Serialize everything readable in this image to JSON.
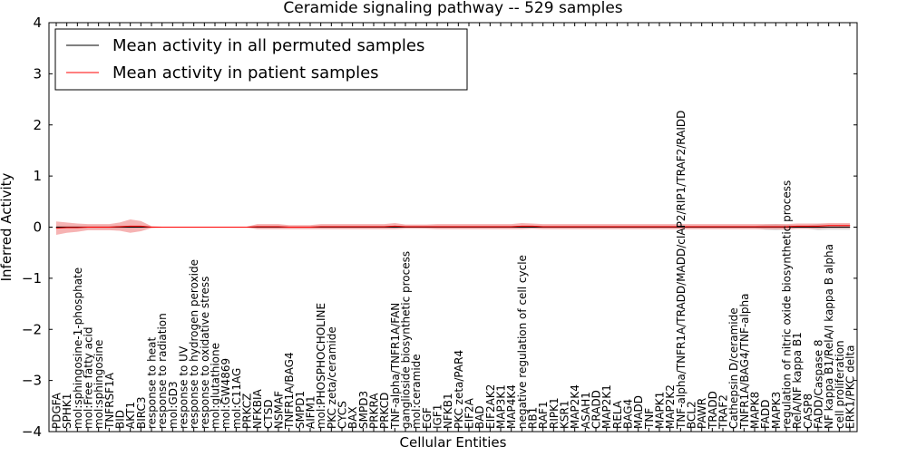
{
  "chart_data": {
    "type": "line",
    "title": "Ceramide signaling pathway -- 529 samples",
    "xlabel": "Cellular Entities",
    "ylabel": "Inferred Activity",
    "ylim": [
      -4,
      4
    ],
    "yticks": [
      -4,
      -3,
      -2,
      -1,
      0,
      1,
      2,
      3,
      4
    ],
    "ytick_labels": [
      "−4",
      "−3",
      "−2",
      "−1",
      "0",
      "1",
      "2",
      "3",
      "4"
    ],
    "grid": false,
    "legend_position": "top-left",
    "categories": [
      "PDGFA",
      "SPHK1",
      "mol:sphingosine-1-phosphate",
      "mol:Free fatty acid",
      "mol:sphingosine",
      "TNFRSF1A",
      "BID",
      "AKT1",
      "BIRC3",
      "response to heat",
      "response to radiation",
      "mol:GD3",
      "response to UV",
      "response to hydrogen peroxide",
      "response to oxidative stress",
      "mol:glutathione",
      "mol:GW4869",
      "mol:C11AG",
      "PRKCZ",
      "NFKBIA",
      "CTSD",
      "NSMAF",
      "TNFR1A/BAG4",
      "SMPD1",
      "AIFM1",
      "mol:PHOSPHOCHOLINE",
      "PKC zeta/ceramide",
      "CYCS",
      "BAX",
      "SMPD3",
      "PRKRA",
      "PRKCD",
      "TNF-alpha/TNFR1A/FAN",
      "ganglioside biosynthetic process",
      "mol:ceramide",
      "EGF",
      "IGF1",
      "NFKB1",
      "PKC zeta/PAR4",
      "EIF2A",
      "BAD",
      "EIF2AK2",
      "MAP3K1",
      "MAP4K4",
      "negative regulation of cell cycle",
      "RB1",
      "RAF1",
      "RIPK1",
      "KSR1",
      "MAP2K4",
      "ASAH1",
      "CRADD",
      "MAP2K1",
      "RELA",
      "BAG4",
      "MADD",
      "TNF",
      "MAPK1",
      "MAP2K2",
      "TNF-alpha/TNFR1A/TRADD/MADD/cIAP2/RIP1/TRAF2/RAIDD",
      "BCL2",
      "PAWR",
      "TRADD",
      "TRAF2",
      "Cathepsin D/ceramide",
      "TNFR1A/BAG4/TNF-alpha",
      "MAPK8",
      "FADD",
      "MAPK3",
      "regulation of nitric oxide biosynthetic process",
      "RelA/NF kappa B1",
      "CASP8",
      "FADD/Caspase 8",
      "NF kappa B1/RelA/I kappa B alpha",
      "cell proliferation",
      "ERK1/PKC delta"
    ],
    "series": [
      {
        "name": "Mean activity in all permuted samples",
        "color": "#000000",
        "band_color": "#bbbbbb",
        "values": [
          0,
          0,
          0,
          0,
          0,
          0,
          0,
          0,
          0,
          0,
          0,
          0,
          0,
          0,
          0,
          0,
          0,
          0,
          0,
          0,
          0,
          0,
          0,
          0,
          0,
          0,
          0,
          0,
          0,
          0,
          0,
          0,
          0,
          0,
          0,
          0,
          0,
          0,
          0,
          0,
          0,
          0,
          0,
          0,
          0,
          0,
          0,
          0,
          0,
          0,
          0,
          0,
          0,
          0,
          0,
          0,
          0,
          0,
          0,
          0,
          0,
          0,
          0,
          0,
          0,
          0,
          0,
          0,
          0,
          0,
          0,
          0,
          0,
          0,
          0,
          0
        ],
        "band": [
          0.03,
          0.03,
          0.03,
          0.03,
          0.03,
          0.03,
          0.03,
          0.03,
          0.02,
          0.01,
          0.01,
          0.01,
          0.01,
          0.01,
          0.01,
          0.01,
          0.01,
          0.01,
          0.01,
          0.02,
          0.02,
          0.02,
          0.02,
          0.02,
          0.02,
          0.02,
          0.02,
          0.02,
          0.02,
          0.02,
          0.02,
          0.02,
          0.02,
          0.01,
          0.01,
          0.02,
          0.02,
          0.02,
          0.02,
          0.02,
          0.02,
          0.02,
          0.02,
          0.02,
          0.02,
          0.02,
          0.02,
          0.02,
          0.02,
          0.02,
          0.02,
          0.02,
          0.02,
          0.02,
          0.02,
          0.02,
          0.02,
          0.02,
          0.02,
          0.02,
          0.02,
          0.02,
          0.02,
          0.02,
          0.02,
          0.02,
          0.02,
          0.05,
          0.06,
          0.05,
          0.03,
          0.03,
          0.06,
          0.05,
          0.05,
          0.05
        ]
      },
      {
        "name": "Mean activity in patient samples",
        "color": "#ff0000",
        "band_color": "#f08080",
        "values": [
          -0.02,
          -0.01,
          -0.01,
          0,
          0,
          0,
          0.01,
          0.02,
          0.02,
          0,
          0,
          0,
          0,
          0,
          0,
          0,
          0,
          0,
          0,
          0.01,
          0.01,
          0.01,
          0,
          0,
          0,
          0.01,
          0.01,
          0.01,
          0.01,
          0.01,
          0.01,
          0.01,
          0.02,
          0.01,
          0.01,
          0.01,
          0.01,
          0.01,
          0.01,
          0.01,
          0.01,
          0.01,
          0.01,
          0.01,
          0.02,
          0.02,
          0.01,
          0.01,
          0.01,
          0.01,
          0.01,
          0.01,
          0.01,
          0.01,
          0.01,
          0.01,
          0.01,
          0.01,
          0.01,
          0.01,
          0.01,
          0.01,
          0.01,
          0.01,
          0.01,
          0.01,
          0.01,
          0.01,
          0.01,
          0.01,
          0.02,
          0.02,
          0.02,
          0.03,
          0.03,
          0.03
        ],
        "band": [
          0.13,
          0.1,
          0.08,
          0.06,
          0.06,
          0.06,
          0.08,
          0.13,
          0.1,
          0.02,
          0.01,
          0.01,
          0.01,
          0.01,
          0.01,
          0.01,
          0.01,
          0.01,
          0.01,
          0.05,
          0.05,
          0.05,
          0.04,
          0.04,
          0.04,
          0.05,
          0.05,
          0.05,
          0.05,
          0.05,
          0.05,
          0.05,
          0.06,
          0.04,
          0.04,
          0.04,
          0.05,
          0.05,
          0.05,
          0.05,
          0.05,
          0.05,
          0.05,
          0.05,
          0.06,
          0.05,
          0.05,
          0.05,
          0.05,
          0.05,
          0.05,
          0.05,
          0.05,
          0.05,
          0.05,
          0.05,
          0.05,
          0.05,
          0.05,
          0.05,
          0.05,
          0.05,
          0.05,
          0.05,
          0.05,
          0.05,
          0.05,
          0.05,
          0.05,
          0.05,
          0.05,
          0.05,
          0.05,
          0.05,
          0.05,
          0.05
        ]
      }
    ]
  }
}
